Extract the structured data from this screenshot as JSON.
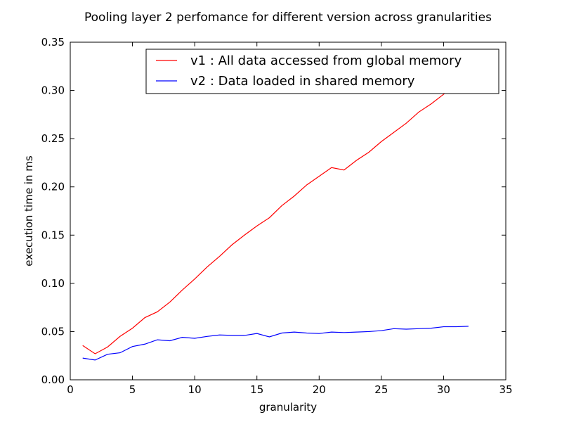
{
  "chart_data": {
    "type": "line",
    "title": "Pooling layer 2 perfomance for different version across granularities",
    "xlabel": "granularity",
    "ylabel": "execution time in ms",
    "xlim": [
      0,
      35
    ],
    "ylim": [
      0,
      0.35
    ],
    "xticks": [
      0,
      5,
      10,
      15,
      20,
      25,
      30,
      35
    ],
    "xtick_labels": [
      "0",
      "5",
      "10",
      "15",
      "20",
      "25",
      "30",
      "35"
    ],
    "yticks": [
      0,
      0.05,
      0.1,
      0.15,
      0.2,
      0.25,
      0.3,
      0.35
    ],
    "ytick_labels": [
      "0.00",
      "0.05",
      "0.10",
      "0.15",
      "0.20",
      "0.25",
      "0.30",
      "0.35"
    ],
    "grid": false,
    "legend_position": "top-right",
    "x": [
      1,
      2,
      3,
      4,
      5,
      6,
      7,
      8,
      9,
      10,
      11,
      12,
      13,
      14,
      15,
      16,
      17,
      18,
      19,
      20,
      21,
      22,
      23,
      24,
      25,
      26,
      27,
      28,
      29,
      30,
      31,
      32
    ],
    "series": [
      {
        "name": "v1 : All data accessed from global memory",
        "color": "#ff0000",
        "values": [
          0.0355,
          0.027,
          0.034,
          0.045,
          0.0535,
          0.0645,
          0.0705,
          0.0805,
          0.093,
          0.1045,
          0.117,
          0.128,
          0.14,
          0.15,
          0.1595,
          0.168,
          0.1805,
          0.1905,
          0.202,
          0.211,
          0.22,
          0.2175,
          0.2275,
          0.236,
          0.247,
          0.2565,
          0.266,
          0.2775,
          0.286,
          0.296,
          0.306,
          0.318
        ]
      },
      {
        "name": "v2 : Data loaded in shared memory",
        "color": "#0000ff",
        "values": [
          0.0225,
          0.0205,
          0.0265,
          0.028,
          0.0345,
          0.037,
          0.0415,
          0.0405,
          0.044,
          0.043,
          0.045,
          0.0465,
          0.046,
          0.046,
          0.048,
          0.0445,
          0.0485,
          0.0495,
          0.0485,
          0.048,
          0.0495,
          0.049,
          0.0495,
          0.05,
          0.051,
          0.053,
          0.0525,
          0.053,
          0.0535,
          0.055,
          0.055,
          0.0555
        ]
      }
    ]
  }
}
